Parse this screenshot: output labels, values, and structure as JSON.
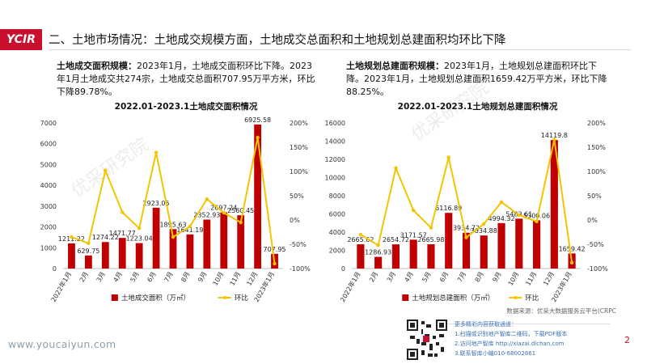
{
  "logo": "YCIR",
  "header": {
    "title": "二、土地市场情况：土地成交规模方面，土地成交总面积和土地规划总建面积均环比下降"
  },
  "left_desc": {
    "heading": "土地成交面积规模：",
    "text": "2023年1月，土地成交面积环比下降。2023年1月土地成交共274宗，土地成交总面积707.95万平方米，环比下降89.78%。"
  },
  "right_desc": {
    "heading": "土地规划总建面积规模：",
    "text": "2023年1月，土地规划总建面积环比下降。2023年1月，土地规划总建面积1659.42万平方米，环比下降88.25%。"
  },
  "watermark": "优采研究院",
  "source": "数据来源：优采大数据服务云平台(CRPC",
  "footer": {
    "website": "www.youcaiyun.com",
    "page": "2",
    "more_title": "更多精彩内容获取通道：",
    "more_1": "1.扫描或识别地产智库二维码，下载PDF版本",
    "more_2": "2.访问地产智库 http://xiazai.dichan.com",
    "more_3": "3.联系智库小编010-68002661"
  },
  "colors": {
    "bar": "#c00000",
    "line": "#f2c500",
    "accent": "#c8102e"
  },
  "chart_data": [
    {
      "type": "bar",
      "title": "2022.01-2023.1土地成交面积情况",
      "categories": [
        "2022年1月",
        "2月",
        "3月",
        "4月",
        "5月",
        "6月",
        "7月",
        "8月",
        "9月",
        "10月",
        "11月",
        "12月",
        "2023年1月"
      ],
      "series": [
        {
          "name": "土地成交面积（万㎡）",
          "type": "bar",
          "axis": "left",
          "values": [
            1211.22,
            629.75,
            1274.22,
            1471.77,
            1223.04,
            2923.05,
            1895.63,
            1641.19,
            2352.93,
            2697.24,
            2560.45,
            6925.58,
            707.95
          ]
        },
        {
          "name": "环比",
          "type": "line",
          "axis": "right",
          "values": [
            -35,
            -48,
            102,
            16,
            -17,
            139,
            -35,
            -13,
            43,
            15,
            -5,
            170,
            -90
          ]
        }
      ],
      "ylim_left": [
        0,
        7000
      ],
      "yticks_left": [
        "0",
        "1000",
        "2000",
        "3000",
        "4000",
        "5000",
        "6000",
        "7000"
      ],
      "ylim_right": [
        -100,
        200
      ],
      "yticks_right": [
        "-100%",
        "-50%",
        "0%",
        "50%",
        "100%",
        "150%",
        "200%"
      ],
      "legend": "bottom"
    },
    {
      "type": "bar",
      "title": "2022.01-2023.1土地规划总建面积情况",
      "categories": [
        "2022年1月",
        "2月",
        "3月",
        "4月",
        "5月",
        "6月",
        "7月",
        "8月",
        "9月",
        "10月",
        "11月",
        "12月",
        "2023年1月"
      ],
      "series": [
        {
          "name": "土地规划总建面积（万㎡）",
          "type": "bar",
          "axis": "left",
          "values": [
            2665.62,
            1286.93,
            2654.72,
            3171.57,
            2665.98,
            6116.89,
            3934.72,
            3634.88,
            4994.32,
            5483.61,
            5300.06,
            14119.8,
            1659.42
          ]
        },
        {
          "name": "环比",
          "type": "line",
          "axis": "right",
          "values": [
            -30,
            -52,
            107,
            20,
            -16,
            129,
            -36,
            -8,
            37,
            10,
            -3,
            166,
            -88
          ]
        }
      ],
      "ylim_left": [
        0,
        16000
      ],
      "yticks_left": [
        "0",
        "2000",
        "4000",
        "6000",
        "8000",
        "10000",
        "12000",
        "14000",
        "16000"
      ],
      "ylim_right": [
        -100,
        200
      ],
      "yticks_right": [
        "-100%",
        "-50%",
        "0%",
        "50%",
        "100%",
        "150%",
        "200%"
      ],
      "legend": "bottom"
    }
  ]
}
